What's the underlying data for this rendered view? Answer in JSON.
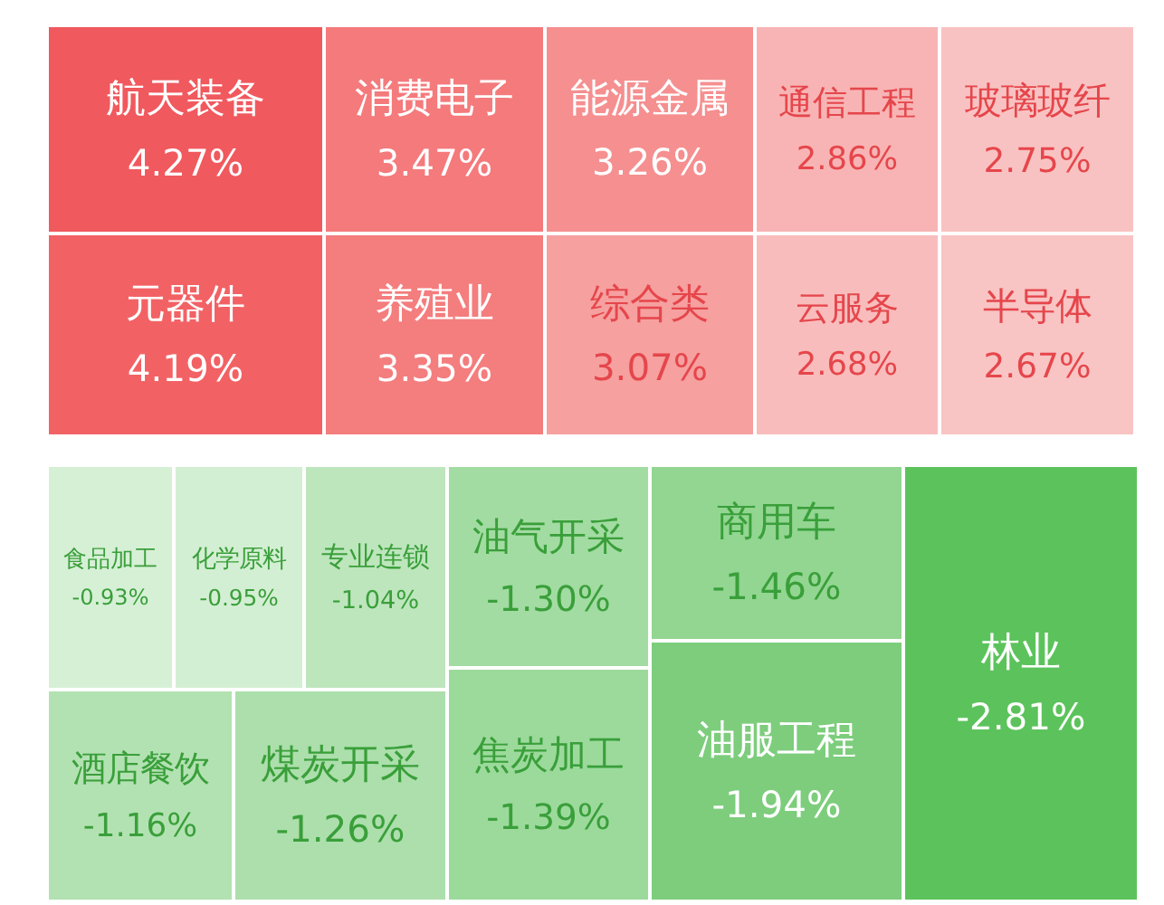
{
  "chart_data": [
    {
      "type": "other",
      "categories": [
        "航天装备",
        "消费电子",
        "能源金属",
        "通信工程",
        "玻璃玻纤",
        "元器件",
        "养殖业",
        "综合类",
        "云服务",
        "半导体"
      ],
      "values": [
        4.27,
        3.47,
        3.26,
        2.86,
        2.75,
        4.19,
        3.35,
        3.07,
        2.68,
        2.67
      ],
      "value_labels": [
        "4.27%",
        "3.47%",
        "3.26%",
        "2.86%",
        "2.75%",
        "4.19%",
        "3.35%",
        "3.07%",
        "2.68%",
        "2.67%"
      ],
      "colors": [
        "#f0595e",
        "#f47a7c",
        "#f58f90",
        "#f8b4b4",
        "#f9c2c2",
        "#f26265",
        "#f47d7e",
        "#f6a0a0",
        "#f9bcbc",
        "#f9c4c4"
      ]
    },
    {
      "type": "other",
      "categories": [
        "食品加工",
        "化学原料",
        "专业连锁",
        "油气开采",
        "商用车",
        "林业",
        "酒店餐饮",
        "煤炭开采",
        "焦炭加工",
        "油服工程"
      ],
      "values": [
        -0.93,
        -0.95,
        -1.04,
        -1.3,
        -1.46,
        -2.81,
        -1.16,
        -1.26,
        -1.39,
        -1.94
      ],
      "value_labels": [
        "-0.93%",
        "-0.95%",
        "-1.04%",
        "-1.30%",
        "-1.46%",
        "-2.81%",
        "-1.16%",
        "-1.26%",
        "-1.39%",
        "-1.94%"
      ],
      "colors": [
        "#d6f0d6",
        "#d3efd3",
        "#bde6bd",
        "#a2dca2",
        "#92d692",
        "#5cc35c",
        "#b2e2b2",
        "#acdfac",
        "#9cda9c",
        "#7dcd7d"
      ]
    }
  ]
}
